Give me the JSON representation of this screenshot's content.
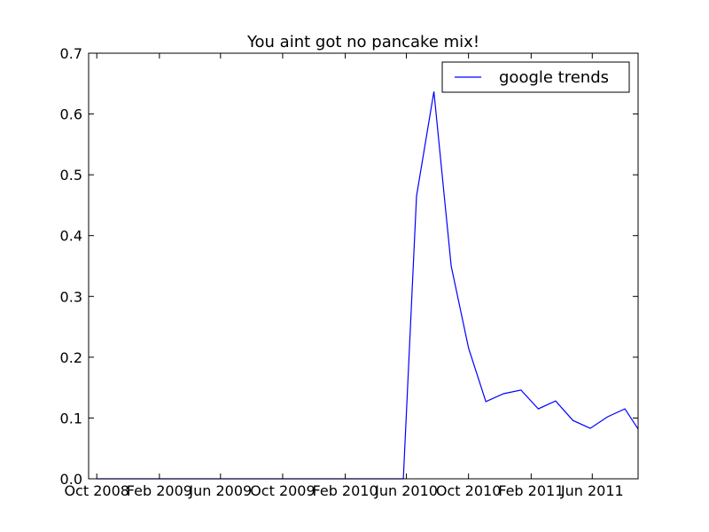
{
  "chart_data": {
    "type": "line",
    "title": "You aint got no pancake mix!",
    "xlabel": "",
    "ylabel": "",
    "xlim": [
      "2008-09-15",
      "2011-08-30"
    ],
    "ylim": [
      0,
      0.7
    ],
    "grid": false,
    "legend_position": "top-right",
    "x_ticks": [
      {
        "date": "2008-10-01",
        "label": "Oct 2008"
      },
      {
        "date": "2009-02-01",
        "label": "Feb 2009"
      },
      {
        "date": "2009-06-01",
        "label": "Jun 2009"
      },
      {
        "date": "2009-10-01",
        "label": "Oct 2009"
      },
      {
        "date": "2010-02-01",
        "label": "Feb 2010"
      },
      {
        "date": "2010-06-01",
        "label": "Jun 2010"
      },
      {
        "date": "2010-10-01",
        "label": "Oct 2010"
      },
      {
        "date": "2011-02-01",
        "label": "Feb 2011"
      },
      {
        "date": "2011-06-01",
        "label": "Jun 2011"
      }
    ],
    "y_ticks": [
      {
        "value": 0.0,
        "label": "0.0"
      },
      {
        "value": 0.1,
        "label": "0.1"
      },
      {
        "value": 0.2,
        "label": "0.2"
      },
      {
        "value": 0.3,
        "label": "0.3"
      },
      {
        "value": 0.4,
        "label": "0.4"
      },
      {
        "value": 0.5,
        "label": "0.5"
      },
      {
        "value": 0.6,
        "label": "0.6"
      },
      {
        "value": 0.7,
        "label": "0.7"
      }
    ],
    "series": [
      {
        "name": "google trends",
        "color": "#0000ff",
        "x": [
          "2008-10-01",
          "2010-05-26",
          "2010-06-21",
          "2010-07-25",
          "2010-08-28",
          "2010-10-01",
          "2010-11-04",
          "2010-12-09",
          "2011-01-12",
          "2011-02-15",
          "2011-03-21",
          "2011-04-24",
          "2011-05-28",
          "2011-07-01",
          "2011-08-04",
          "2011-08-30"
        ],
        "y": [
          0.0,
          0.0,
          0.465,
          0.637,
          0.35,
          0.215,
          0.127,
          0.14,
          0.146,
          0.115,
          0.128,
          0.096,
          0.083,
          0.102,
          0.115,
          0.082
        ]
      }
    ]
  }
}
